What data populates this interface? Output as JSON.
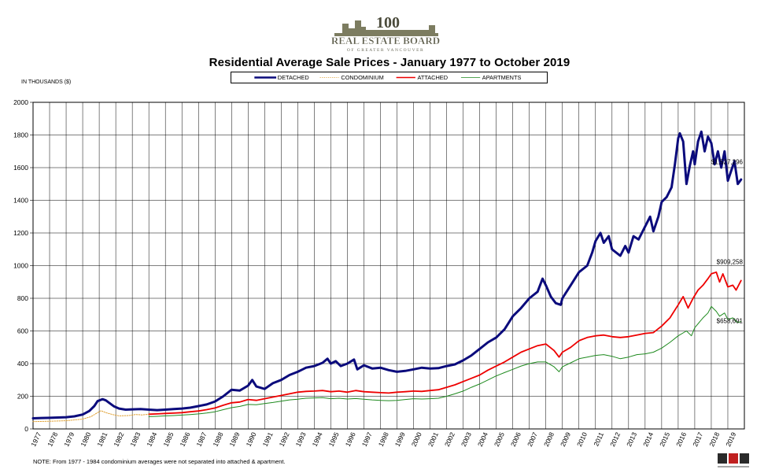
{
  "logo": {
    "numeral": "100",
    "org_name": "REAL ESTATE BOARD",
    "org_sub": "OF GREATER VANCOUVER"
  },
  "chart_data": {
    "type": "line",
    "title": "Residential Average Sale Prices  -  January 1977 to October 2019",
    "ylabel": "IN THOUSANDS ($)",
    "xlabel": "",
    "ylim": [
      0,
      2000
    ],
    "yticks": [
      0,
      200,
      400,
      600,
      800,
      1000,
      1200,
      1400,
      1600,
      1800,
      2000
    ],
    "xlim": [
      1977.0,
      2020.0
    ],
    "xtick_labels": [
      "1977",
      "1978",
      "1979",
      "1980",
      "1981",
      "1982",
      "1983",
      "1984",
      "1985",
      "1986",
      "1987",
      "1988",
      "1989",
      "1990",
      "1991",
      "1992",
      "1993",
      "1994",
      "1995",
      "1996",
      "1997",
      "1998",
      "1999",
      "2000",
      "2001",
      "2002",
      "2003",
      "2004",
      "2005",
      "2006",
      "2007",
      "2008",
      "2009",
      "2010",
      "2011",
      "2012",
      "2013",
      "2014",
      "2015",
      "2016",
      "2017",
      "2018",
      "2019"
    ],
    "grid": true,
    "legend_position": "top",
    "annotations": [
      "$1,527,296",
      "$909,258",
      "$658,691"
    ],
    "note": "NOTE:  From 1977 - 1984 condominium averages were not separated into attached & apartment.",
    "series": [
      {
        "name": "DETACHED",
        "color": "#0b0b7c",
        "style": "solid-thick",
        "points": [
          [
            1977.0,
            65
          ],
          [
            1977.5,
            67
          ],
          [
            1978.0,
            68
          ],
          [
            1978.5,
            70
          ],
          [
            1979.0,
            72
          ],
          [
            1979.5,
            77
          ],
          [
            1980.0,
            88
          ],
          [
            1980.4,
            110
          ],
          [
            1980.7,
            140
          ],
          [
            1980.9,
            170
          ],
          [
            1981.2,
            182
          ],
          [
            1981.4,
            175
          ],
          [
            1981.6,
            160
          ],
          [
            1981.9,
            138
          ],
          [
            1982.2,
            125
          ],
          [
            1982.6,
            118
          ],
          [
            1983.0,
            120
          ],
          [
            1983.5,
            122
          ],
          [
            1984.0,
            118
          ],
          [
            1984.5,
            115
          ],
          [
            1985.0,
            118
          ],
          [
            1985.5,
            122
          ],
          [
            1986.0,
            125
          ],
          [
            1986.5,
            130
          ],
          [
            1987.0,
            140
          ],
          [
            1987.5,
            150
          ],
          [
            1988.0,
            168
          ],
          [
            1988.5,
            200
          ],
          [
            1989.0,
            240
          ],
          [
            1989.5,
            235
          ],
          [
            1990.0,
            265
          ],
          [
            1990.25,
            300
          ],
          [
            1990.5,
            260
          ],
          [
            1991.0,
            245
          ],
          [
            1991.5,
            280
          ],
          [
            1992.0,
            300
          ],
          [
            1992.5,
            330
          ],
          [
            1993.0,
            350
          ],
          [
            1993.5,
            375
          ],
          [
            1994.0,
            385
          ],
          [
            1994.5,
            405
          ],
          [
            1994.8,
            430
          ],
          [
            1995.0,
            400
          ],
          [
            1995.3,
            415
          ],
          [
            1995.6,
            385
          ],
          [
            1996.0,
            400
          ],
          [
            1996.4,
            425
          ],
          [
            1996.6,
            365
          ],
          [
            1997.0,
            390
          ],
          [
            1997.5,
            370
          ],
          [
            1998.0,
            375
          ],
          [
            1998.5,
            360
          ],
          [
            1999.0,
            350
          ],
          [
            1999.5,
            355
          ],
          [
            2000.0,
            365
          ],
          [
            2000.5,
            375
          ],
          [
            2001.0,
            370
          ],
          [
            2001.5,
            372
          ],
          [
            2002.0,
            385
          ],
          [
            2002.5,
            395
          ],
          [
            2003.0,
            420
          ],
          [
            2003.5,
            450
          ],
          [
            2004.0,
            490
          ],
          [
            2004.5,
            530
          ],
          [
            2005.0,
            560
          ],
          [
            2005.5,
            610
          ],
          [
            2006.0,
            690
          ],
          [
            2006.5,
            740
          ],
          [
            2007.0,
            800
          ],
          [
            2007.5,
            840
          ],
          [
            2007.8,
            920
          ],
          [
            2008.0,
            880
          ],
          [
            2008.3,
            810
          ],
          [
            2008.6,
            770
          ],
          [
            2008.9,
            760
          ],
          [
            2009.0,
            800
          ],
          [
            2009.5,
            880
          ],
          [
            2010.0,
            960
          ],
          [
            2010.5,
            1000
          ],
          [
            2010.8,
            1080
          ],
          [
            2011.0,
            1150
          ],
          [
            2011.3,
            1200
          ],
          [
            2011.5,
            1140
          ],
          [
            2011.8,
            1180
          ],
          [
            2012.0,
            1100
          ],
          [
            2012.5,
            1060
          ],
          [
            2012.8,
            1120
          ],
          [
            2013.0,
            1080
          ],
          [
            2013.3,
            1180
          ],
          [
            2013.6,
            1160
          ],
          [
            2013.8,
            1200
          ],
          [
            2014.0,
            1240
          ],
          [
            2014.3,
            1300
          ],
          [
            2014.5,
            1210
          ],
          [
            2014.8,
            1300
          ],
          [
            2015.0,
            1390
          ],
          [
            2015.3,
            1420
          ],
          [
            2015.6,
            1480
          ],
          [
            2015.8,
            1620
          ],
          [
            2016.0,
            1780
          ],
          [
            2016.1,
            1810
          ],
          [
            2016.3,
            1760
          ],
          [
            2016.5,
            1500
          ],
          [
            2016.7,
            1610
          ],
          [
            2016.9,
            1700
          ],
          [
            2017.0,
            1620
          ],
          [
            2017.2,
            1760
          ],
          [
            2017.4,
            1820
          ],
          [
            2017.6,
            1700
          ],
          [
            2017.8,
            1790
          ],
          [
            2018.0,
            1750
          ],
          [
            2018.2,
            1620
          ],
          [
            2018.4,
            1700
          ],
          [
            2018.6,
            1600
          ],
          [
            2018.8,
            1700
          ],
          [
            2019.0,
            1520
          ],
          [
            2019.2,
            1580
          ],
          [
            2019.4,
            1640
          ],
          [
            2019.6,
            1500
          ],
          [
            2019.8,
            1527
          ]
        ]
      },
      {
        "name": "CONDOMINIUM",
        "color": "#e0a030",
        "style": "dotted",
        "points": [
          [
            1977.0,
            45
          ],
          [
            1978.0,
            47
          ],
          [
            1979.0,
            50
          ],
          [
            1980.0,
            60
          ],
          [
            1980.5,
            75
          ],
          [
            1980.9,
            100
          ],
          [
            1981.1,
            112
          ],
          [
            1981.4,
            100
          ],
          [
            1981.8,
            88
          ],
          [
            1982.2,
            80
          ],
          [
            1982.8,
            82
          ],
          [
            1983.2,
            88
          ],
          [
            1983.6,
            86
          ],
          [
            1984.0,
            90
          ]
        ]
      },
      {
        "name": "ATTACHED",
        "color": "#ee0000",
        "style": "solid",
        "points": [
          [
            1984.0,
            90
          ],
          [
            1984.5,
            92
          ],
          [
            1985.0,
            95
          ],
          [
            1985.5,
            97
          ],
          [
            1986.0,
            100
          ],
          [
            1986.5,
            105
          ],
          [
            1987.0,
            110
          ],
          [
            1987.5,
            118
          ],
          [
            1988.0,
            128
          ],
          [
            1988.5,
            145
          ],
          [
            1989.0,
            160
          ],
          [
            1989.5,
            165
          ],
          [
            1990.0,
            180
          ],
          [
            1990.5,
            175
          ],
          [
            1991.0,
            185
          ],
          [
            1991.5,
            195
          ],
          [
            1992.0,
            205
          ],
          [
            1992.5,
            215
          ],
          [
            1993.0,
            225
          ],
          [
            1993.5,
            230
          ],
          [
            1994.0,
            232
          ],
          [
            1994.5,
            235
          ],
          [
            1995.0,
            228
          ],
          [
            1995.5,
            232
          ],
          [
            1996.0,
            225
          ],
          [
            1996.5,
            235
          ],
          [
            1997.0,
            228
          ],
          [
            1997.5,
            225
          ],
          [
            1998.0,
            222
          ],
          [
            1998.5,
            220
          ],
          [
            1999.0,
            225
          ],
          [
            1999.5,
            228
          ],
          [
            2000.0,
            232
          ],
          [
            2000.5,
            230
          ],
          [
            2001.0,
            235
          ],
          [
            2001.5,
            240
          ],
          [
            2002.0,
            255
          ],
          [
            2002.5,
            270
          ],
          [
            2003.0,
            290
          ],
          [
            2003.5,
            310
          ],
          [
            2004.0,
            330
          ],
          [
            2004.5,
            360
          ],
          [
            2005.0,
            385
          ],
          [
            2005.5,
            410
          ],
          [
            2006.0,
            440
          ],
          [
            2006.5,
            470
          ],
          [
            2007.0,
            490
          ],
          [
            2007.5,
            510
          ],
          [
            2008.0,
            520
          ],
          [
            2008.5,
            480
          ],
          [
            2008.8,
            440
          ],
          [
            2009.0,
            470
          ],
          [
            2009.5,
            500
          ],
          [
            2010.0,
            540
          ],
          [
            2010.5,
            560
          ],
          [
            2011.0,
            570
          ],
          [
            2011.5,
            575
          ],
          [
            2012.0,
            565
          ],
          [
            2012.5,
            560
          ],
          [
            2013.0,
            565
          ],
          [
            2013.5,
            575
          ],
          [
            2014.0,
            585
          ],
          [
            2014.5,
            590
          ],
          [
            2015.0,
            630
          ],
          [
            2015.5,
            680
          ],
          [
            2016.0,
            760
          ],
          [
            2016.3,
            810
          ],
          [
            2016.6,
            740
          ],
          [
            2016.9,
            800
          ],
          [
            2017.2,
            850
          ],
          [
            2017.5,
            880
          ],
          [
            2017.8,
            920
          ],
          [
            2018.0,
            950
          ],
          [
            2018.3,
            960
          ],
          [
            2018.5,
            900
          ],
          [
            2018.7,
            950
          ],
          [
            2019.0,
            870
          ],
          [
            2019.3,
            880
          ],
          [
            2019.5,
            850
          ],
          [
            2019.8,
            909
          ]
        ]
      },
      {
        "name": "APARTMENTS",
        "color": "#1e8a1e",
        "style": "solid-thin",
        "points": [
          [
            1984.0,
            75
          ],
          [
            1984.5,
            77
          ],
          [
            1985.0,
            80
          ],
          [
            1985.5,
            82
          ],
          [
            1986.0,
            85
          ],
          [
            1986.5,
            88
          ],
          [
            1987.0,
            92
          ],
          [
            1987.5,
            98
          ],
          [
            1988.0,
            105
          ],
          [
            1988.5,
            118
          ],
          [
            1989.0,
            130
          ],
          [
            1989.5,
            138
          ],
          [
            1990.0,
            150
          ],
          [
            1990.5,
            148
          ],
          [
            1991.0,
            155
          ],
          [
            1991.5,
            162
          ],
          [
            1992.0,
            170
          ],
          [
            1992.5,
            178
          ],
          [
            1993.0,
            182
          ],
          [
            1993.5,
            188
          ],
          [
            1994.0,
            190
          ],
          [
            1994.5,
            192
          ],
          [
            1995.0,
            185
          ],
          [
            1995.5,
            188
          ],
          [
            1996.0,
            183
          ],
          [
            1996.5,
            186
          ],
          [
            1997.0,
            182
          ],
          [
            1997.5,
            178
          ],
          [
            1998.0,
            175
          ],
          [
            1998.5,
            173
          ],
          [
            1999.0,
            175
          ],
          [
            1999.5,
            180
          ],
          [
            2000.0,
            185
          ],
          [
            2000.5,
            183
          ],
          [
            2001.0,
            185
          ],
          [
            2001.5,
            188
          ],
          [
            2002.0,
            200
          ],
          [
            2002.5,
            215
          ],
          [
            2003.0,
            232
          ],
          [
            2003.5,
            255
          ],
          [
            2004.0,
            275
          ],
          [
            2004.5,
            300
          ],
          [
            2005.0,
            325
          ],
          [
            2005.5,
            345
          ],
          [
            2006.0,
            365
          ],
          [
            2006.5,
            385
          ],
          [
            2007.0,
            400
          ],
          [
            2007.5,
            410
          ],
          [
            2008.0,
            410
          ],
          [
            2008.5,
            380
          ],
          [
            2008.8,
            350
          ],
          [
            2009.0,
            380
          ],
          [
            2009.5,
            405
          ],
          [
            2010.0,
            430
          ],
          [
            2010.5,
            440
          ],
          [
            2011.0,
            450
          ],
          [
            2011.5,
            455
          ],
          [
            2012.0,
            445
          ],
          [
            2012.5,
            430
          ],
          [
            2013.0,
            440
          ],
          [
            2013.5,
            455
          ],
          [
            2014.0,
            460
          ],
          [
            2014.5,
            470
          ],
          [
            2015.0,
            495
          ],
          [
            2015.5,
            530
          ],
          [
            2016.0,
            570
          ],
          [
            2016.5,
            600
          ],
          [
            2016.8,
            570
          ],
          [
            2017.0,
            620
          ],
          [
            2017.5,
            680
          ],
          [
            2017.8,
            710
          ],
          [
            2018.0,
            750
          ],
          [
            2018.3,
            720
          ],
          [
            2018.5,
            690
          ],
          [
            2018.8,
            710
          ],
          [
            2019.0,
            670
          ],
          [
            2019.3,
            680
          ],
          [
            2019.6,
            650
          ],
          [
            2019.8,
            659
          ]
        ]
      }
    ]
  }
}
